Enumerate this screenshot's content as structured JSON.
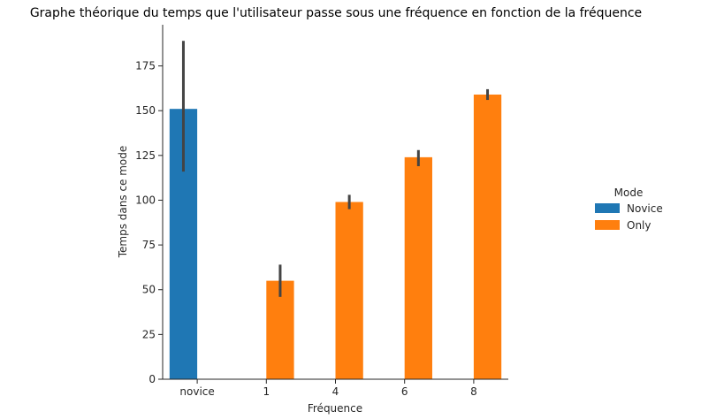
{
  "chart_data": {
    "type": "bar",
    "title": "Graphe théorique du temps que l'utilisateur passe sous une fréquence en fonction de la fréquence",
    "xlabel": "Fréquence",
    "ylabel": "Temps dans ce mode",
    "categories": [
      "novice",
      "1",
      "4",
      "6",
      "8"
    ],
    "ylim": [
      0,
      198
    ],
    "yticks": [
      0,
      25,
      50,
      75,
      100,
      125,
      150,
      175
    ],
    "grid": false,
    "legend": {
      "title": "Mode",
      "placement": "right"
    },
    "series": [
      {
        "name": "Novice",
        "color": "#1f77b4",
        "values": [
          151,
          null,
          null,
          null,
          null
        ],
        "error_low": [
          116,
          null,
          null,
          null,
          null
        ],
        "error_high": [
          189,
          null,
          null,
          null,
          null
        ]
      },
      {
        "name": "Only",
        "color": "#ff7f0e",
        "values": [
          null,
          55,
          99,
          124,
          159
        ],
        "error_low": [
          null,
          46,
          95,
          119,
          156
        ],
        "error_high": [
          null,
          64,
          103,
          128,
          162
        ]
      }
    ],
    "error_bar_color": "#444444"
  }
}
